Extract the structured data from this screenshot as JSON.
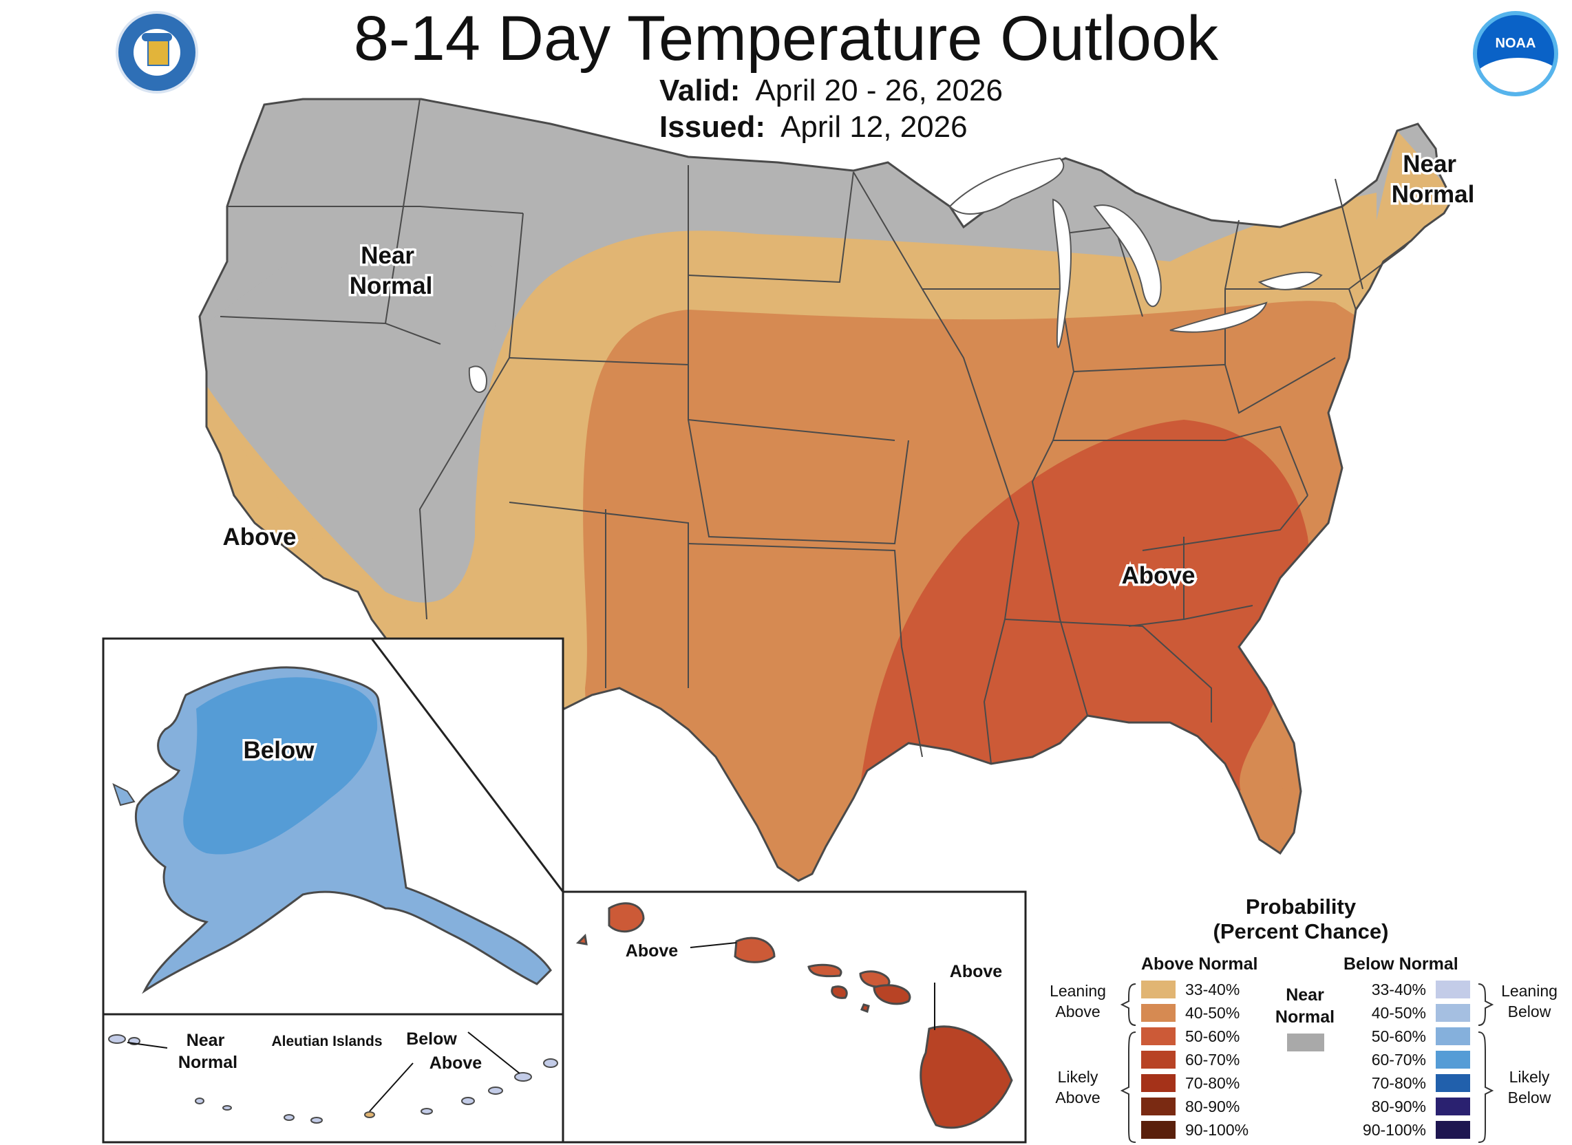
{
  "header": {
    "title": "8-14 Day Temperature Outlook",
    "valid_label": "Valid:",
    "valid_value": "April 20 - 26, 2026",
    "issued_label": "Issued:",
    "issued_value": "April 12, 2026"
  },
  "logos": {
    "commerce_icon": "department-of-commerce-seal",
    "noaa_text": "NOAA"
  },
  "map_labels": {
    "conus_northwest": "Near Normal",
    "conus_northeast": "Near Normal",
    "conus_california": "Above",
    "conus_southeast": "Above",
    "alaska": "Below",
    "hawaii_oahu": "Above",
    "hawaii_big_island": "Above",
    "aleutian_title": "Aleutian Islands",
    "aleutian_near_normal": "Near Normal",
    "aleutian_below": "Below",
    "aleutian_above": "Above"
  },
  "colors": {
    "near_normal": "#b3b3b3",
    "above_33_40": "#e1b573",
    "above_40_50": "#d68a52",
    "above_50_60": "#cc5a37",
    "above_60_70": "#b84325",
    "below_33_40": "#c3cce8",
    "below_40_50": "#a5bfe1",
    "below_50_60": "#85b0dc",
    "below_60_70": "#559cd6"
  },
  "legend": {
    "title_line1": "Probability",
    "title_line2": "(Percent Chance)",
    "above_header": "Above Normal",
    "below_header": "Below Normal",
    "near_header_line1": "Near",
    "near_header_line2": "Normal",
    "near_color": "#a9a9a9",
    "leaning_above": [
      "Leaning",
      "Above"
    ],
    "likely_above": [
      "Likely",
      "Above"
    ],
    "leaning_below": [
      "Leaning",
      "Below"
    ],
    "likely_below": [
      "Likely",
      "Below"
    ],
    "above_items": [
      {
        "label": "33-40%",
        "color": "#e1b573"
      },
      {
        "label": "40-50%",
        "color": "#d68a52"
      },
      {
        "label": "50-60%",
        "color": "#cc5a37"
      },
      {
        "label": "60-70%",
        "color": "#b84325"
      },
      {
        "label": "70-80%",
        "color": "#a53219"
      },
      {
        "label": "80-90%",
        "color": "#7a2a12"
      },
      {
        "label": "90-100%",
        "color": "#5a200c"
      }
    ],
    "below_items": [
      {
        "label": "33-40%",
        "color": "#c3cce8"
      },
      {
        "label": "40-50%",
        "color": "#a5bfe1"
      },
      {
        "label": "50-60%",
        "color": "#85b0dc"
      },
      {
        "label": "60-70%",
        "color": "#559cd6"
      },
      {
        "label": "70-80%",
        "color": "#2160ac"
      },
      {
        "label": "80-90%",
        "color": "#2a2170"
      },
      {
        "label": "90-100%",
        "color": "#1e1650"
      }
    ]
  }
}
